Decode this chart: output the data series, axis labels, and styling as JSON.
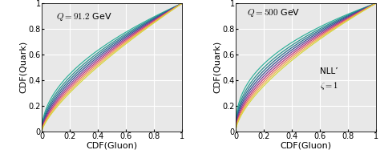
{
  "title_left": "$Q = 91.2$ GeV",
  "title_right": "$Q = 500$ GeV",
  "annotation_line1": "NLL’",
  "annotation_line2": "$\\zeta = 1$",
  "xlabel": "CDF(Gluon)",
  "ylabel": "CDF(Quark)",
  "xlim": [
    0.0,
    1.0
  ],
  "ylim": [
    0.0,
    1.0
  ],
  "xticks": [
    0.0,
    0.2,
    0.4,
    0.6,
    0.8,
    1.0
  ],
  "yticks": [
    0.0,
    0.2,
    0.4,
    0.6,
    0.8,
    1.0
  ],
  "colors": [
    "#2db09a",
    "#27908e",
    "#276f8e",
    "#355191",
    "#7b3e96",
    "#c0337b",
    "#e87060",
    "#f4b240",
    "#d4d63a"
  ],
  "exponents_left": [
    0.5,
    0.535,
    0.565,
    0.595,
    0.625,
    0.655,
    0.685,
    0.715,
    0.745
  ],
  "exponents_right": [
    0.4,
    0.435,
    0.465,
    0.495,
    0.525,
    0.555,
    0.585,
    0.615,
    0.645
  ],
  "background_color": "#e8e8e8",
  "grid_color": "#ffffff",
  "fontsize_title": 8,
  "fontsize_label": 8,
  "fontsize_tick": 7,
  "fontsize_annot": 7.5
}
